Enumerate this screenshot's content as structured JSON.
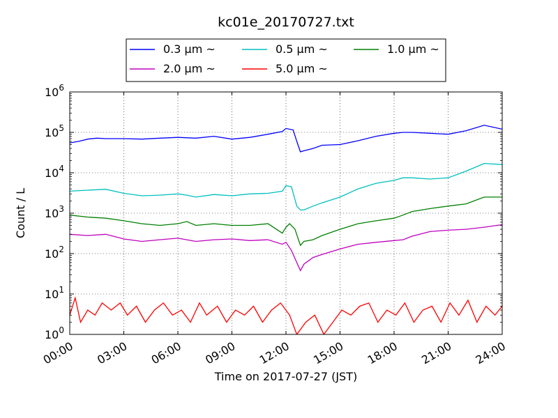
{
  "chart_data": {
    "type": "line",
    "title": "kc01e_20170727.txt",
    "xlabel": "Time on 2017-07-27 (JST)",
    "ylabel": "Count / L",
    "x_range_hours": [
      0,
      24
    ],
    "x_ticks": [
      {
        "h": 0,
        "label": "00:00"
      },
      {
        "h": 3,
        "label": "03:00"
      },
      {
        "h": 6,
        "label": "06:00"
      },
      {
        "h": 9,
        "label": "09:00"
      },
      {
        "h": 12,
        "label": "12:00"
      },
      {
        "h": 15,
        "label": "15:00"
      },
      {
        "h": 18,
        "label": "18:00"
      },
      {
        "h": 21,
        "label": "21:00"
      },
      {
        "h": 24,
        "label": "24:00"
      }
    ],
    "y_scale": "log",
    "ylim": [
      1,
      1000000
    ],
    "y_ticks": [
      {
        "v": 1,
        "base": "10",
        "exp": "0"
      },
      {
        "v": 10,
        "base": "10",
        "exp": "1"
      },
      {
        "v": 100,
        "base": "10",
        "exp": "2"
      },
      {
        "v": 1000,
        "base": "10",
        "exp": "3"
      },
      {
        "v": 10000,
        "base": "10",
        "exp": "4"
      },
      {
        "v": 100000,
        "base": "10",
        "exp": "5"
      },
      {
        "v": 1000000,
        "base": "10",
        "exp": "6"
      }
    ],
    "grid": true,
    "legend_position": "top-center, above plot",
    "series": [
      {
        "name": "0.3 μm ~",
        "color": "#0000ff",
        "x": [
          0,
          0.5,
          1,
          1.5,
          2,
          3,
          4,
          5,
          6,
          7,
          8,
          9,
          10,
          11,
          11.8,
          12,
          12.4,
          12.6,
          12.8,
          13,
          13.5,
          14,
          15,
          16,
          17,
          18,
          18.5,
          19,
          20,
          21,
          22,
          23,
          24
        ],
        "values": [
          55000,
          60000,
          68000,
          72000,
          70000,
          70000,
          68000,
          72000,
          75000,
          72000,
          80000,
          68000,
          75000,
          90000,
          105000,
          125000,
          115000,
          60000,
          33000,
          35000,
          40000,
          48000,
          50000,
          62000,
          80000,
          95000,
          100000,
          100000,
          95000,
          90000,
          110000,
          150000,
          120000
        ]
      },
      {
        "name": "0.5 μm ~",
        "color": "#00bfbf",
        "x": [
          0,
          1,
          2,
          3,
          4,
          5,
          6,
          6.5,
          7,
          8,
          9,
          10,
          11,
          11.8,
          12,
          12.3,
          12.6,
          12.8,
          13,
          13.5,
          14,
          15,
          16,
          17,
          18,
          18.5,
          19,
          20,
          21,
          22,
          23,
          24
        ],
        "values": [
          3500,
          3700,
          3900,
          3100,
          2700,
          2800,
          3000,
          2800,
          2500,
          2900,
          2700,
          3000,
          3100,
          3500,
          4800,
          4500,
          1500,
          1200,
          1200,
          1500,
          1800,
          2500,
          4000,
          5500,
          6500,
          7500,
          7500,
          7000,
          7500,
          11000,
          17000,
          16000
        ]
      },
      {
        "name": "1.0 μm ~",
        "color": "#008000",
        "x": [
          0,
          1,
          2,
          3,
          4,
          5,
          6,
          6.5,
          7,
          8,
          9,
          10,
          11,
          11.8,
          12,
          12.2,
          12.5,
          12.8,
          13,
          13.5,
          14,
          15,
          16,
          17,
          18,
          18.5,
          19,
          20,
          21,
          22,
          23,
          24
        ],
        "values": [
          900,
          800,
          750,
          650,
          550,
          500,
          550,
          620,
          500,
          550,
          500,
          500,
          550,
          320,
          450,
          550,
          400,
          160,
          200,
          220,
          280,
          400,
          550,
          650,
          750,
          900,
          1100,
          1300,
          1500,
          1700,
          2500,
          2500
        ]
      },
      {
        "name": "2.0 μm ~",
        "color": "#bf00bf",
        "x": [
          0,
          1,
          2,
          3,
          4,
          5,
          6,
          7,
          8,
          9,
          10,
          11,
          11.8,
          12,
          12.3,
          12.6,
          12.8,
          13,
          13.5,
          14,
          15,
          16,
          17,
          18,
          18.5,
          19,
          20,
          21,
          22,
          23,
          24
        ],
        "values": [
          300,
          280,
          300,
          230,
          200,
          220,
          240,
          200,
          220,
          230,
          210,
          220,
          170,
          190,
          120,
          60,
          38,
          55,
          80,
          95,
          130,
          170,
          190,
          210,
          220,
          270,
          350,
          380,
          400,
          450,
          520
        ]
      },
      {
        "name": "5.0 μm ~",
        "color": "#ff0000",
        "x": [
          0,
          0.3,
          0.6,
          1,
          1.4,
          1.8,
          2.3,
          2.8,
          3.2,
          3.7,
          4.2,
          4.7,
          5.2,
          5.7,
          6.2,
          6.7,
          7.2,
          7.6,
          8.2,
          8.7,
          9.2,
          9.7,
          10.2,
          10.7,
          11.2,
          11.7,
          12.2,
          12.6,
          13.1,
          13.6,
          14.1,
          14.6,
          15.1,
          15.6,
          16.1,
          16.6,
          17.1,
          17.6,
          18.1,
          18.6,
          19.1,
          19.6,
          20.1,
          20.6,
          21.1,
          21.6,
          22.1,
          22.6,
          23.1,
          23.6,
          24
        ],
        "values": [
          3,
          8,
          2,
          4,
          3,
          6,
          4,
          6,
          3,
          5,
          2,
          4,
          6,
          3,
          4,
          2,
          6,
          3,
          5,
          2,
          4,
          3,
          5,
          2,
          4,
          6,
          3,
          1,
          2,
          3,
          1,
          2,
          4,
          3,
          5,
          6,
          2,
          4,
          3,
          6,
          2,
          4,
          5,
          2,
          6,
          3,
          7,
          2,
          5,
          3,
          5
        ]
      }
    ]
  }
}
